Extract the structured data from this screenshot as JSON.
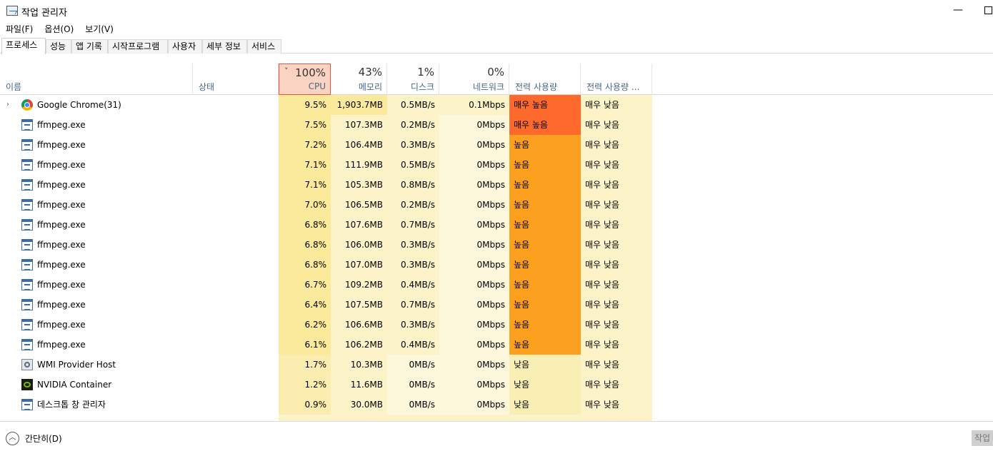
{
  "window": {
    "title": "작업 관리자",
    "minimize_glyph": "—"
  },
  "menu": [
    "파일(F)",
    "옵션(O)",
    "보기(V)"
  ],
  "tabs": [
    {
      "label": "프로세스",
      "active": true
    },
    {
      "label": "성능",
      "active": false
    },
    {
      "label": "앱 기록",
      "active": false
    },
    {
      "label": "시작프로그램",
      "active": false
    },
    {
      "label": "사용자",
      "active": false
    },
    {
      "label": "세부 정보",
      "active": false
    },
    {
      "label": "서비스",
      "active": false
    }
  ],
  "columns": {
    "name": "이름",
    "status": "상태",
    "cpu": {
      "pct": "100%",
      "label": "CPU",
      "sort_glyph": "˅"
    },
    "memory": {
      "pct": "43%",
      "label": "메모리"
    },
    "disk": {
      "pct": "1%",
      "label": "디스크"
    },
    "network": {
      "pct": "0%",
      "label": "네트워크"
    },
    "power": "전력 사용량",
    "power_trend": "전력 사용량 ..."
  },
  "processes": [
    {
      "name": "Google Chrome(31)",
      "icon": "chrome-icon",
      "expandable": true,
      "expand_glyph": "›",
      "cpu": "9.5%",
      "memory": "1,903.7MB",
      "disk": "0.5MB/s",
      "network": "0.1Mbps",
      "power": "매우 높음",
      "power_trend": "매우 낮음"
    },
    {
      "name": "ffmpeg.exe",
      "icon": "ffmpeg-icon",
      "cpu": "7.5%",
      "memory": "107.3MB",
      "disk": "0.2MB/s",
      "network": "0Mbps",
      "power": "매우 높음",
      "power_trend": "매우 낮음"
    },
    {
      "name": "ffmpeg.exe",
      "icon": "ffmpeg-icon",
      "cpu": "7.2%",
      "memory": "106.4MB",
      "disk": "0.3MB/s",
      "network": "0Mbps",
      "power": "높음",
      "power_trend": "매우 낮음"
    },
    {
      "name": "ffmpeg.exe",
      "icon": "ffmpeg-icon",
      "cpu": "7.1%",
      "memory": "111.9MB",
      "disk": "0.5MB/s",
      "network": "0Mbps",
      "power": "높음",
      "power_trend": "매우 낮음"
    },
    {
      "name": "ffmpeg.exe",
      "icon": "ffmpeg-icon",
      "cpu": "7.1%",
      "memory": "105.3MB",
      "disk": "0.8MB/s",
      "network": "0Mbps",
      "power": "높음",
      "power_trend": "매우 낮음"
    },
    {
      "name": "ffmpeg.exe",
      "icon": "ffmpeg-icon",
      "cpu": "7.0%",
      "memory": "106.5MB",
      "disk": "0.2MB/s",
      "network": "0Mbps",
      "power": "높음",
      "power_trend": "매우 낮음"
    },
    {
      "name": "ffmpeg.exe",
      "icon": "ffmpeg-icon",
      "cpu": "6.8%",
      "memory": "107.6MB",
      "disk": "0.7MB/s",
      "network": "0Mbps",
      "power": "높음",
      "power_trend": "매우 낮음"
    },
    {
      "name": "ffmpeg.exe",
      "icon": "ffmpeg-icon",
      "cpu": "6.8%",
      "memory": "106.0MB",
      "disk": "0.3MB/s",
      "network": "0Mbps",
      "power": "높음",
      "power_trend": "매우 낮음"
    },
    {
      "name": "ffmpeg.exe",
      "icon": "ffmpeg-icon",
      "cpu": "6.8%",
      "memory": "107.0MB",
      "disk": "0.3MB/s",
      "network": "0Mbps",
      "power": "높음",
      "power_trend": "매우 낮음"
    },
    {
      "name": "ffmpeg.exe",
      "icon": "ffmpeg-icon",
      "cpu": "6.7%",
      "memory": "109.2MB",
      "disk": "0.4MB/s",
      "network": "0Mbps",
      "power": "높음",
      "power_trend": "매우 낮음"
    },
    {
      "name": "ffmpeg.exe",
      "icon": "ffmpeg-icon",
      "cpu": "6.4%",
      "memory": "107.5MB",
      "disk": "0.7MB/s",
      "network": "0Mbps",
      "power": "높음",
      "power_trend": "매우 낮음"
    },
    {
      "name": "ffmpeg.exe",
      "icon": "ffmpeg-icon",
      "cpu": "6.2%",
      "memory": "106.6MB",
      "disk": "0.3MB/s",
      "network": "0Mbps",
      "power": "높음",
      "power_trend": "매우 낮음"
    },
    {
      "name": "ffmpeg.exe",
      "icon": "ffmpeg-icon",
      "cpu": "6.1%",
      "memory": "106.2MB",
      "disk": "0.4MB/s",
      "network": "0Mbps",
      "power": "높음",
      "power_trend": "매우 낮음"
    },
    {
      "name": "WMI Provider Host",
      "icon": "wmi-icon",
      "cpu": "1.7%",
      "memory": "10.3MB",
      "disk": "0MB/s",
      "network": "0Mbps",
      "power": "낮음",
      "power_trend": "매우 낮음"
    },
    {
      "name": "NVIDIA Container",
      "icon": "nvidia-icon",
      "cpu": "1.2%",
      "memory": "11.6MB",
      "disk": "0MB/s",
      "network": "0Mbps",
      "power": "낮음",
      "power_trend": "매우 낮음"
    },
    {
      "name": "데스크톱 창 관리자",
      "icon": "ffmpeg-icon",
      "cpu": "0.9%",
      "memory": "30.0MB",
      "disk": "0MB/s",
      "network": "0Mbps",
      "power": "낮음",
      "power_trend": "매우 낮음"
    }
  ],
  "footer": {
    "collapse_label": "간단히(D)",
    "collapse_glyph": "︿",
    "end_task_label": "작업"
  },
  "colors": {
    "power_very_high": "#fd6a2c",
    "power_high": "#fba01f",
    "power_low": "#f9efb4",
    "cpu_high": "#fbe99c",
    "cpu_mid": "#fbedb0",
    "cell_light": "#fcf3c9",
    "cell_faint": "#fdf7dc"
  }
}
